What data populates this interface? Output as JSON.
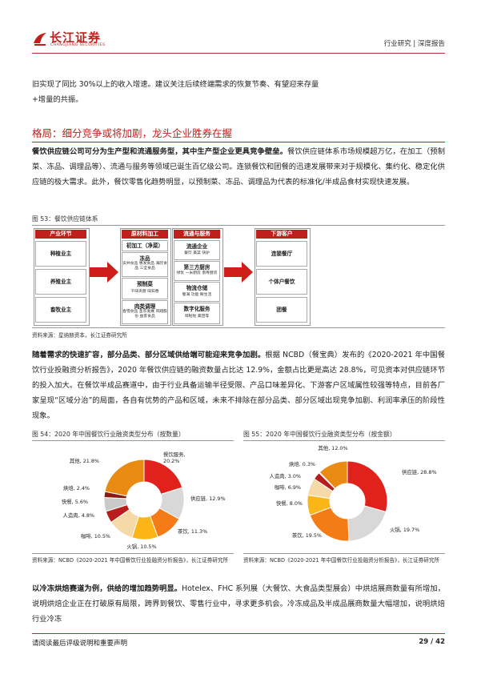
{
  "header": {
    "logo_cn": "长江证券",
    "logo_en": "CHANGJIANG SECURITIES",
    "right_text": "行业研究 | 深度报告"
  },
  "intro": {
    "line1": "旧实现了同比 30%以上的收入增速。建议关注后续终端需求的恢复节奏、有望迎来存量",
    "line2": "+增量的共振。"
  },
  "section": {
    "title": "格局：细分竞争或将加剧，龙头企业胜券在握"
  },
  "para1": {
    "bold": "餐饮供应链公司可分为生产型和流通服务型，其中生产型企业更具竞争壁垒。",
    "rest": "餐饮供应链体系市场规模超万亿，在加工（预制菜、冻品、调理品等）、流通与服务等领域已诞生百亿级公司。连锁餐饮和团餐的迅速发展带来对于规模化、集约化、稳定化供应链的极大需求。此外，餐饮零售化趋势明显，以预制菜、冻品、调理品为代表的标准化/半成品食材实现快速发展。"
  },
  "fig53": {
    "caption": "图 53：餐饮供应链体系",
    "source": "资料来源：星纳赫资本，长江证券研究所",
    "industry_head": "产业环节",
    "industry_items": [
      "种植业主",
      "养殖业主",
      "畜牧业主"
    ],
    "raw_head": "原材料加工",
    "raw_items": [
      {
        "title": "初加工（净菜）",
        "sub": ""
      },
      {
        "title": "冻品",
        "sub": "安井食品 惠发食品 海欣食品 三全食品"
      },
      {
        "title": "预制菜",
        "sub": "千味央厨 味知香"
      },
      {
        "title": "肉类调理",
        "sub": "春雪食品 圣农发展 凤翔股份 益客食品"
      }
    ],
    "flow_head": "流通与服务",
    "flow_items": [
      {
        "title": "流通企业",
        "sub": "餐饮 美菜 快驴"
      },
      {
        "title": "第三方厨房",
        "sub": "绿优 一米厨房 南粤厨房"
      },
      {
        "title": "物流仓储",
        "sub": "蜀海 功能 鲜生活"
      },
      {
        "title": "数字化服务",
        "sub": "哗啦啦 美团等"
      }
    ],
    "down_head": "下游客户",
    "down_items": [
      "连锁餐厅",
      "个体户餐饮",
      "团餐"
    ]
  },
  "para2": {
    "bold": "随着需求的快速扩容，部分品类、部分区域供给端可能迎来竞争加剧。",
    "rest": "根据 NCBD（餐宝典）发布的《2020-2021 年中国餐饮行业投融资分析报告》，2020 年餐饮供应链的融资数量占比达 12.9%，金额占比更是高达 28.8%，可见资本对供应链环节的投入加大。在餐饮半成品赛道中，由于行业具备运输半径受限、产品口味差异化、下游客户区域属性较强等特点，目前各厂家呈现“区域分治”的局面，各自有优势的产品和区域，未来不排除在部分品类、部分区域出现竞争加剧、利润率承压的阶段性现象。"
  },
  "fig54": {
    "caption": "图 54：2020 年中国餐饮行业融资类型分布（按数量）",
    "source": "资料来源：NCBD《2020-2021 年中国餐饮行业投融资分析报告》，长江证券研究所",
    "chart_data": {
      "type": "pie",
      "categories": [
        "餐饮服务",
        "供应链",
        "茶饮",
        "火锅",
        "咖啡",
        "人造肉",
        "快餐",
        "烘焙",
        "其他"
      ],
      "values": [
        20.2,
        12.9,
        11.3,
        10.5,
        10.5,
        4.8,
        5.6,
        2.4,
        21.8
      ],
      "labels": [
        "餐饮服务,\n20.2%",
        "供应链, 12.9%",
        "茶饮, 11.3%",
        "火锅, 10.5%",
        "咖啡, 10.5%",
        "人造肉, 4.8%",
        "快餐, 5.6%",
        "烘焙, 2.4%",
        "其他, 21.8%"
      ],
      "colors": [
        "#e0211c",
        "#d8d8d8",
        "#f47b16",
        "#fbb516",
        "#f5d9a6",
        "#b81c1c",
        "#c9c9c9",
        "#8a1a14",
        "#e98a12"
      ]
    }
  },
  "fig55": {
    "caption": "图 55：2020 年中国餐饮行业融资类型分布（按金额）",
    "source": "资料来源：NCBD《2020-2021 年中国餐饮行业投融资分析报告》，长江证券研究所",
    "chart_data": {
      "type": "pie",
      "categories": [
        "供应链",
        "火锅",
        "茶饮",
        "快餐",
        "咖啡",
        "人造肉",
        "烘焙",
        "其他"
      ],
      "values": [
        28.8,
        19.7,
        19.5,
        8.0,
        6.9,
        3.0,
        0.3,
        12.0
      ],
      "labels": [
        "供应链, 28.8%",
        "火锅, 19.7%",
        "茶饮, 19.5%",
        "快餐, 8.0%",
        "咖啡, 6.9%",
        "人造肉, 3.0%",
        "烘焙, 0.3%",
        "其他, 12.0%"
      ],
      "colors": [
        "#e0211c",
        "#d8d8d8",
        "#f47b16",
        "#fbb516",
        "#f5d9a6",
        "#b81c1c",
        "#8a1a14",
        "#e98a12"
      ]
    }
  },
  "para3": {
    "bold": "以冷冻烘焙赛道为例，供给的增加趋势明显。",
    "rest": "Hotelex、FHC 系列展（大餐饮、大食品类型展会）中烘焙展商数量有所增加，说明烘焙企业正在打破原有局限，跨界到餐饮、零售行业中，寻求更多机会。冷冻成品及半成品展商数量大幅增加，说明烘焙行业冷冻"
  },
  "footer": {
    "left": "请阅读最后评级说明和重要声明",
    "page": "29 / 42"
  }
}
